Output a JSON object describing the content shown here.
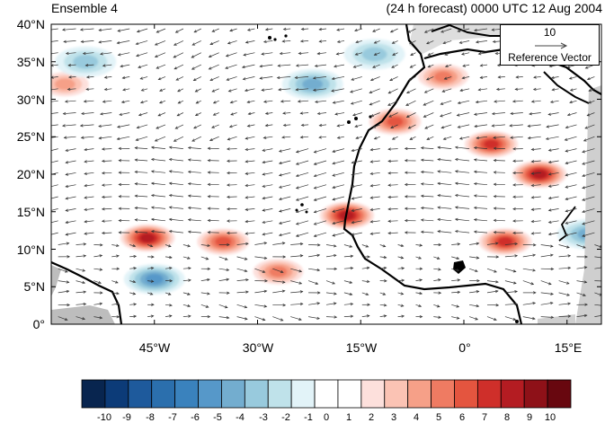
{
  "title_left": "Ensemble 4",
  "title_right": "(24 h forecast) 0000 UTC 12 Aug 2004",
  "lat_labels": [
    "40°N",
    "35°N",
    "30°N",
    "25°N",
    "20°N",
    "15°N",
    "10°N",
    "5°N",
    "0°"
  ],
  "lon_labels": [
    "45°W",
    "30°W",
    "15°W",
    "0°",
    "15°E"
  ],
  "reference_vector": {
    "value": "10",
    "label": "Reference Vector"
  },
  "colorbar": {
    "labels": [
      "-10",
      "-9",
      "-8",
      "-7",
      "-6",
      "-5",
      "-4",
      "-3",
      "-2",
      "-1",
      "0",
      "1",
      "2",
      "3",
      "4",
      "5",
      "6",
      "7",
      "8",
      "9",
      "10"
    ],
    "colors": [
      "#08254f",
      "#0c3b78",
      "#1e5a9c",
      "#2b6fad",
      "#3a82bd",
      "#5698c9",
      "#73adcf",
      "#98cadd",
      "#bfe2ea",
      "#e2f3f8",
      "#ffffff",
      "#ffffff",
      "#fde0dc",
      "#fbc3b4",
      "#f6a088",
      "#ef7b62",
      "#e4553f",
      "#cf2f2a",
      "#b41c22",
      "#8e1118",
      "#68070f"
    ]
  },
  "chart_data": {
    "type": "heatmap",
    "title": "Ensemble 4",
    "subtitle": "(24 h forecast) 0000 UTC 12 Aug 2004",
    "lon_range": [
      -60,
      20
    ],
    "lat_range": [
      0,
      40
    ],
    "lon_ticks": [
      -45,
      -30,
      -15,
      0,
      15
    ],
    "lat_ticks": [
      40,
      35,
      30,
      25,
      20,
      15,
      10,
      5,
      0
    ],
    "color_levels": [
      -10,
      -9,
      -8,
      -7,
      -6,
      -5,
      -4,
      -3,
      -2,
      -1,
      0,
      1,
      2,
      3,
      4,
      5,
      6,
      7,
      8,
      9,
      10
    ],
    "reference_vector_magnitude": 10,
    "features": {
      "anomalies": [
        {
          "sign": "positive",
          "lon": -46,
          "lat": 11.5,
          "strength": 8
        },
        {
          "sign": "positive",
          "lon": -35,
          "lat": 11,
          "strength": 6
        },
        {
          "sign": "positive",
          "lon": -17,
          "lat": 14.5,
          "strength": 8
        },
        {
          "sign": "positive",
          "lon": -10,
          "lat": 27,
          "strength": 6
        },
        {
          "sign": "positive",
          "lon": 4,
          "lat": 24,
          "strength": 7
        },
        {
          "sign": "positive",
          "lon": 11,
          "lat": 20,
          "strength": 8
        },
        {
          "sign": "positive",
          "lon": 6,
          "lat": 11,
          "strength": 7
        },
        {
          "sign": "positive",
          "lon": -27,
          "lat": 7,
          "strength": 5
        },
        {
          "sign": "positive",
          "lon": -58,
          "lat": 32,
          "strength": 4
        },
        {
          "sign": "positive",
          "lon": -3,
          "lat": 33,
          "strength": 5
        },
        {
          "sign": "negative",
          "lon": -45,
          "lat": 6,
          "strength": -5
        },
        {
          "sign": "negative",
          "lon": -22,
          "lat": 32,
          "strength": -4
        },
        {
          "sign": "negative",
          "lon": -13,
          "lat": 36,
          "strength": -3
        },
        {
          "sign": "negative",
          "lon": 18,
          "lat": 12,
          "strength": -4
        },
        {
          "sign": "negative",
          "lon": -55,
          "lat": 35,
          "strength": -3
        }
      ]
    }
  }
}
